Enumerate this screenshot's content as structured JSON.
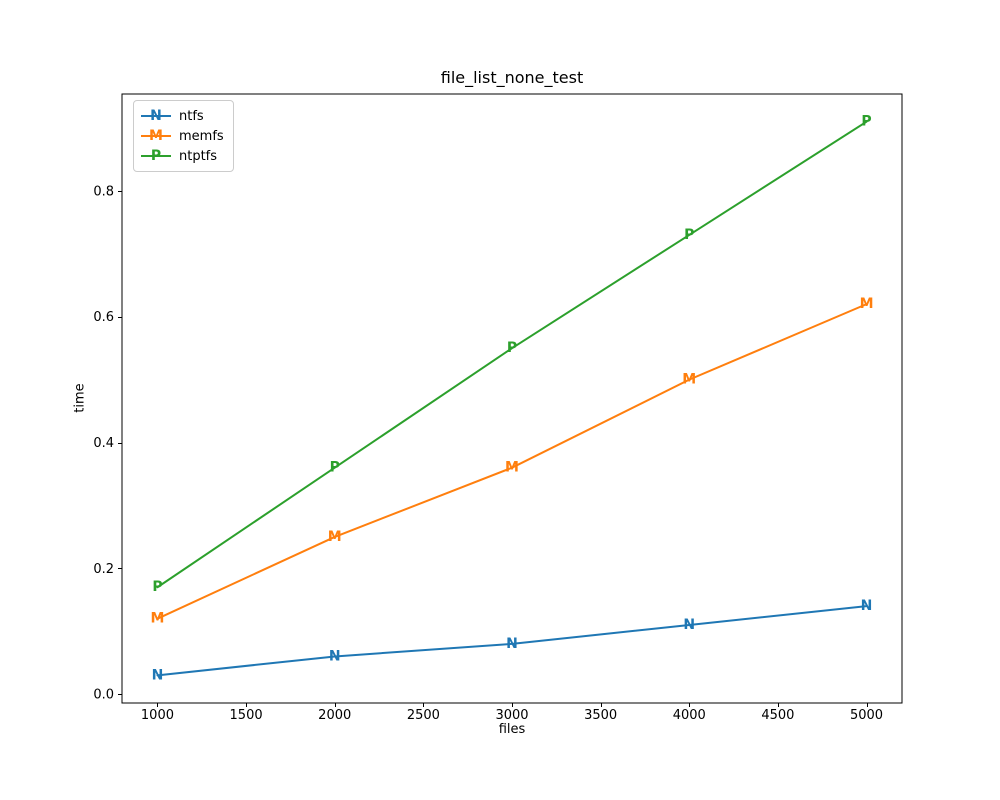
{
  "chart_data": {
    "type": "line",
    "title": "file_list_none_test",
    "xlabel": "files",
    "ylabel": "time",
    "x": [
      1000,
      2000,
      3000,
      4000,
      5000
    ],
    "series": [
      {
        "name": "ntfs",
        "marker": "N",
        "color": "#1f77b4",
        "values": [
          0.03,
          0.06,
          0.08,
          0.11,
          0.14
        ]
      },
      {
        "name": "memfs",
        "marker": "M",
        "color": "#ff7f0e",
        "values": [
          0.12,
          0.25,
          0.36,
          0.5,
          0.62
        ]
      },
      {
        "name": "ntptfs",
        "marker": "P",
        "color": "#2ca02c",
        "values": [
          0.17,
          0.36,
          0.55,
          0.73,
          0.91
        ]
      }
    ],
    "xticks": [
      1000,
      1500,
      2000,
      2500,
      3000,
      3500,
      4000,
      4500,
      5000
    ],
    "yticks": [
      0.0,
      0.2,
      0.4,
      0.6,
      0.8
    ],
    "xlim": [
      800,
      5200
    ],
    "ylim": [
      -0.014,
      0.954
    ],
    "legend_position": "upper left",
    "grid": false,
    "axis_color": "#000000",
    "background_color": "#ffffff"
  }
}
